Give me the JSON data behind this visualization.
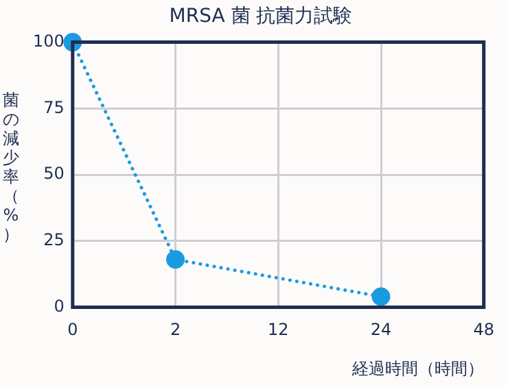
{
  "chart_data": {
    "type": "line",
    "title": "MRSA 菌 抗菌力試験",
    "xlabel": "経過時間（時間）",
    "ylabel": "菌の減少率（%）",
    "categories": [
      "0",
      "2",
      "12",
      "24",
      "48"
    ],
    "series": [
      {
        "color": "#1a9be0",
        "values": [
          100,
          18,
          null,
          4,
          null
        ]
      }
    ],
    "ylim": [
      0,
      100
    ],
    "yticks": [
      0,
      25,
      50,
      75,
      100
    ],
    "grid": true,
    "legend": false,
    "marker": "circle",
    "line_style": "dotted"
  }
}
